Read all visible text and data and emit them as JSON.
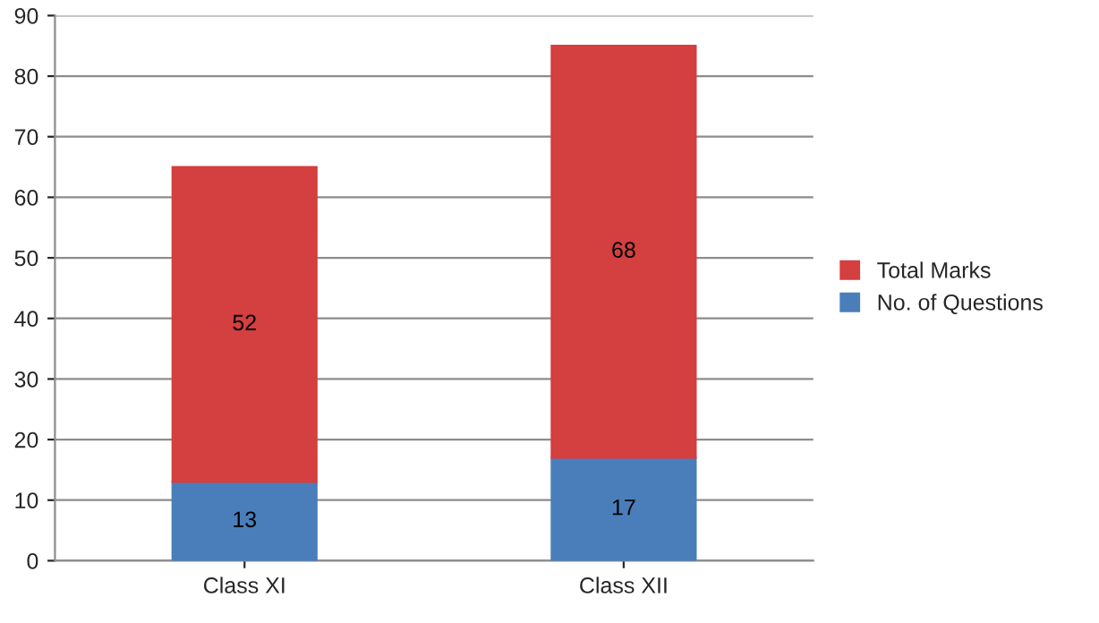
{
  "chart_data": {
    "type": "bar",
    "stacked": true,
    "categories": [
      "Class XI",
      "Class XII"
    ],
    "series": [
      {
        "name": "No. of Questions",
        "color": "#4a7ebb",
        "values": [
          13,
          17
        ]
      },
      {
        "name": "Total Marks",
        "color": "#d43f3f",
        "values": [
          52,
          68
        ]
      }
    ],
    "ylim": [
      0,
      90
    ],
    "yticks": [
      0,
      10,
      20,
      30,
      40,
      50,
      60,
      70,
      80,
      90
    ],
    "grid": "y",
    "legend": "right",
    "data_labels": true
  }
}
